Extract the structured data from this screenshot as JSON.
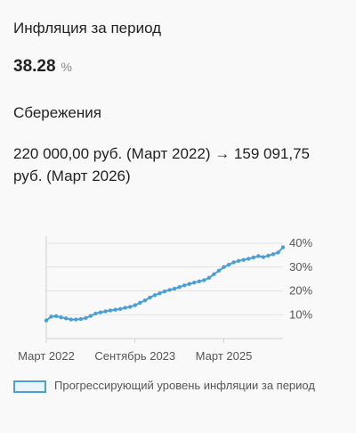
{
  "inflation": {
    "title": "Инфляция за период",
    "value": "38.28",
    "unit": "%"
  },
  "savings": {
    "title": "Сбережения",
    "text": "220 000,00 руб. (Март 2022) → 159 091,75 руб. (Март 2026)"
  },
  "chart_data": {
    "type": "line",
    "x_tick_labels": [
      "Март 2022",
      "Сентябрь 2023",
      "Март 2025"
    ],
    "y_tick_labels": [
      "10%",
      "20%",
      "30%",
      "40%"
    ],
    "y_ticks": [
      10,
      20,
      30,
      40
    ],
    "ylim": [
      0,
      40
    ],
    "series": [
      {
        "name": "Прогрессирующий уровень инфляции за период",
        "color": "#4a9fd4",
        "x": [
          "2022-03",
          "2022-04",
          "2022-05",
          "2022-06",
          "2022-07",
          "2022-08",
          "2022-09",
          "2022-10",
          "2022-11",
          "2022-12",
          "2023-01",
          "2023-02",
          "2023-03",
          "2023-04",
          "2023-05",
          "2023-06",
          "2023-07",
          "2023-08",
          "2023-09",
          "2023-10",
          "2023-11",
          "2023-12",
          "2024-01",
          "2024-02",
          "2024-03",
          "2024-04",
          "2024-05",
          "2024-06",
          "2024-07",
          "2024-08",
          "2024-09",
          "2024-10",
          "2024-11",
          "2024-12",
          "2025-01",
          "2025-02",
          "2025-03",
          "2025-04",
          "2025-05",
          "2025-06",
          "2025-07",
          "2025-08",
          "2025-09",
          "2025-10",
          "2025-11",
          "2025-12",
          "2026-01",
          "2026-02",
          "2026-03"
        ],
        "values": [
          7.6,
          9.2,
          9.4,
          8.9,
          8.5,
          8.0,
          8.0,
          8.2,
          8.6,
          9.5,
          10.5,
          11.0,
          11.4,
          11.8,
          12.1,
          12.4,
          12.9,
          13.3,
          14.0,
          15.0,
          16.0,
          17.2,
          18.2,
          19.0,
          19.8,
          20.4,
          20.9,
          21.6,
          22.3,
          22.9,
          23.5,
          24.0,
          24.5,
          25.5,
          27.0,
          28.5,
          30.0,
          31.0,
          32.0,
          32.6,
          33.0,
          33.5,
          34.0,
          34.6,
          34.2,
          34.8,
          35.4,
          36.1,
          38.3
        ]
      }
    ],
    "grid": "horizontal",
    "legend_position": "bottom-left"
  }
}
